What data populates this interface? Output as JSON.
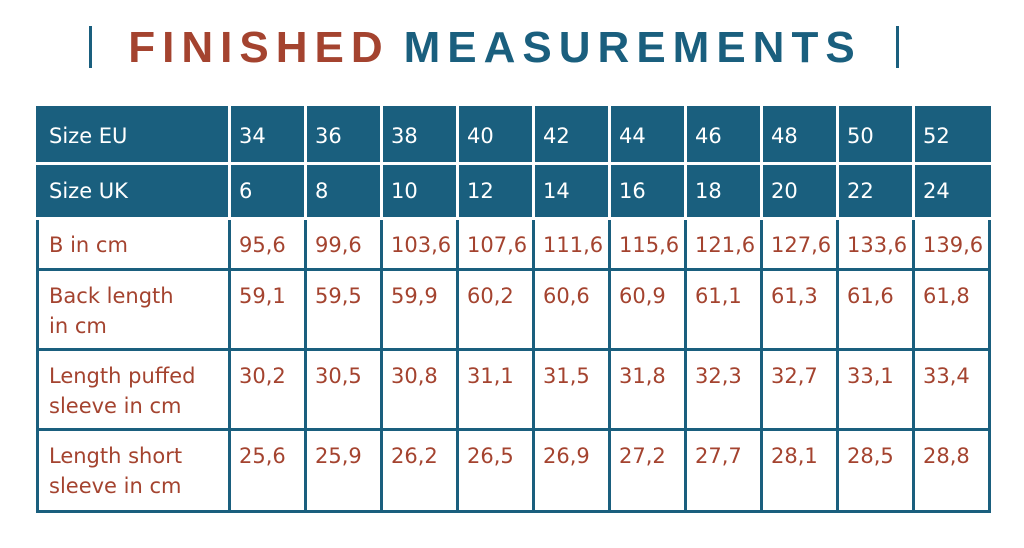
{
  "title": {
    "part1": "FINISHED",
    "part2": "MEASUREMENTS"
  },
  "table": {
    "rows": [
      [
        "Size EU",
        "34",
        "36",
        "38",
        "40",
        "42",
        "44",
        "46",
        "48",
        "50",
        "52"
      ],
      [
        "Size UK",
        "6",
        "8",
        "10",
        "12",
        "14",
        "16",
        "18",
        "20",
        "22",
        "24"
      ],
      [
        "B in cm",
        "95,6",
        "99,6",
        "103,6",
        "107,6",
        "111,6",
        "115,6",
        "121,6",
        "127,6",
        "133,6",
        "139,6"
      ],
      [
        "Back length in cm",
        "59,1",
        "59,5",
        "59,9",
        "60,2",
        "60,6",
        "60,9",
        "61,1",
        "61,3",
        "61,6",
        "61,8"
      ],
      [
        "Length puffed sleeve in cm",
        "30,2",
        "30,5",
        "30,8",
        "31,1",
        "31,5",
        "31,8",
        "32,3",
        "32,7",
        "33,1",
        "33,4"
      ],
      [
        "Length short sleeve in cm",
        "25,6",
        "25,9",
        "26,2",
        "26,5",
        "26,9",
        "27,2",
        "27,7",
        "28,1",
        "28,5",
        "28,8"
      ]
    ]
  }
}
